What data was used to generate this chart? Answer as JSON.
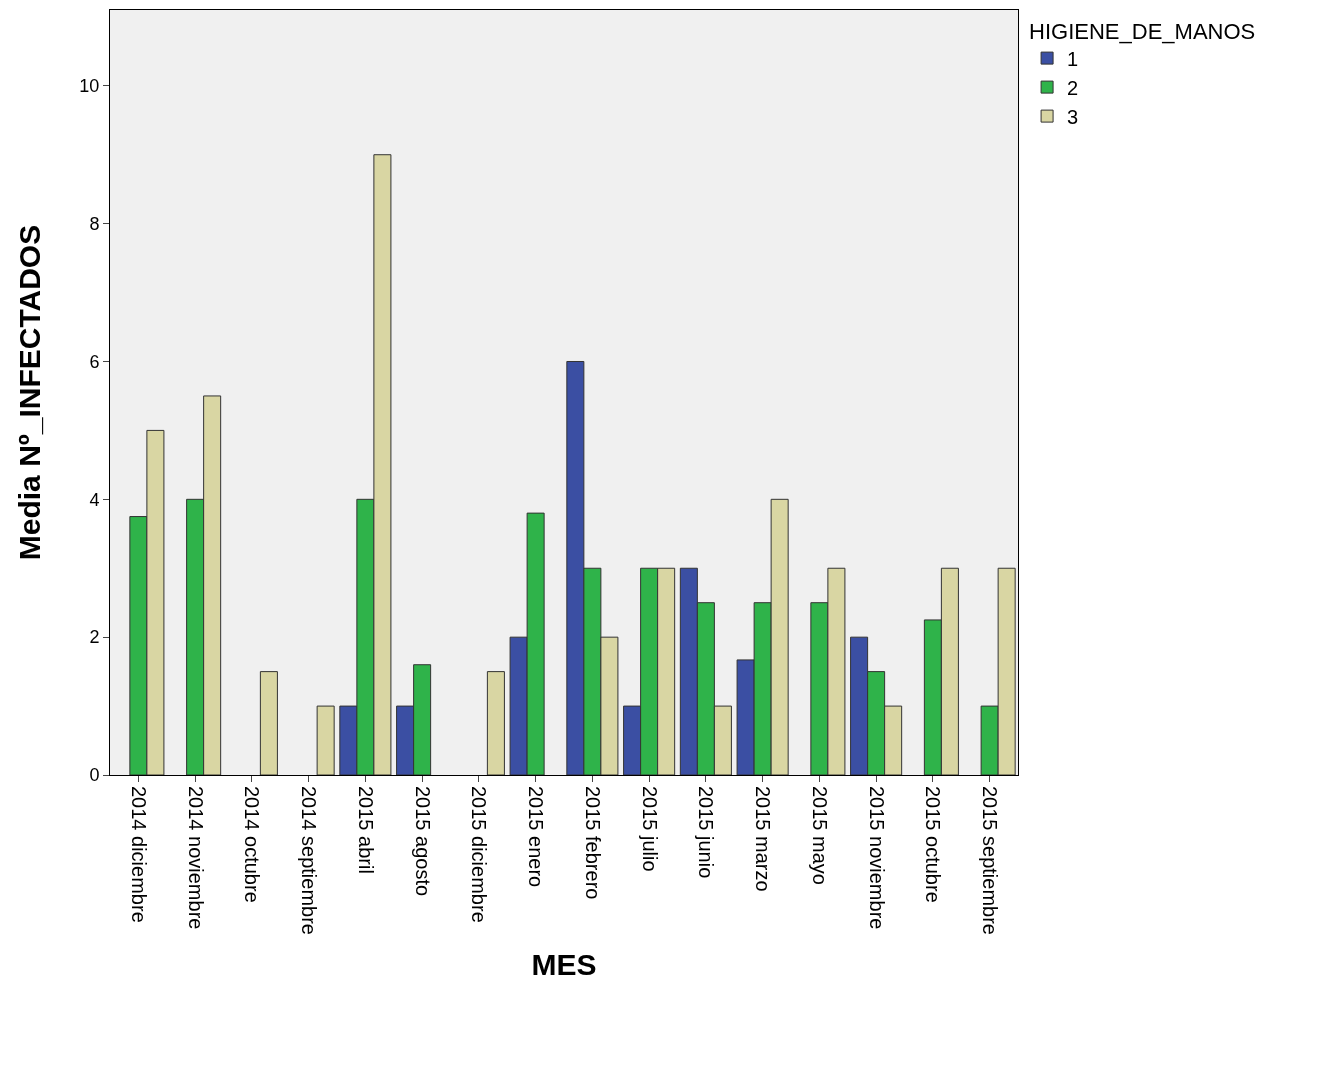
{
  "chart_data": {
    "type": "bar",
    "xlabel": "MES",
    "ylabel": "Media Nº_INFECTADOS",
    "legend_title": "HIGIENE_DE_MANOS",
    "categories": [
      "2014 diciembre",
      "2014 noviembre",
      "2014 octubre",
      "2014 septiembre",
      "2015 abril",
      "2015 agosto",
      "2015 diciembre",
      "2015 enero",
      "2015 febrero",
      "2015 julio",
      "2015 junio",
      "2015 marzo",
      "2015 mayo",
      "2015 noviembre",
      "2015 octubre",
      "2015 septiembre"
    ],
    "series": [
      {
        "name": "1",
        "color": "#3b4fa3",
        "values": [
          null,
          null,
          null,
          null,
          1,
          1,
          null,
          2,
          6,
          1,
          3,
          1.67,
          null,
          2,
          null,
          null
        ]
      },
      {
        "name": "2",
        "color": "#2fb34a",
        "values": [
          3.75,
          4,
          null,
          null,
          4,
          1.6,
          null,
          3.8,
          3,
          3,
          2.5,
          2.5,
          2.5,
          1.5,
          2.25,
          1
        ]
      },
      {
        "name": "3",
        "color": "#d9d6a3",
        "values": [
          5,
          5.5,
          1.5,
          1,
          9,
          null,
          1.5,
          null,
          2,
          3,
          1,
          4,
          3,
          1,
          3,
          3
        ]
      }
    ],
    "ylim": [
      0,
      11.1
    ],
    "yticks": [
      0,
      2,
      4,
      6,
      8,
      10
    ],
    "grid": false,
    "legend": "top right"
  }
}
